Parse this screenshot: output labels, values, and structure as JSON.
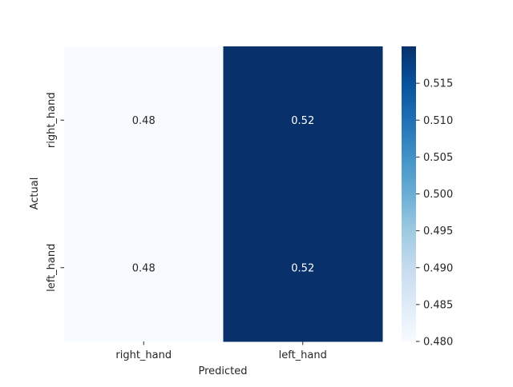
{
  "chart_data": {
    "type": "heatmap",
    "title": "",
    "xlabel": "Predicted",
    "ylabel": "Actual",
    "x_categories": [
      "right_hand",
      "left_hand"
    ],
    "y_categories": [
      "right_hand",
      "left_hand"
    ],
    "values": [
      [
        0.48,
        0.52
      ],
      [
        0.48,
        0.52
      ]
    ],
    "annotations": [
      [
        "0.48",
        "0.52"
      ],
      [
        "0.48",
        "0.52"
      ]
    ],
    "colorbar": {
      "min": 0.48,
      "max": 0.52,
      "ticks": [
        0.48,
        0.485,
        0.49,
        0.495,
        0.5,
        0.505,
        0.51,
        0.515
      ],
      "tick_labels": [
        "0.480",
        "0.485",
        "0.490",
        "0.495",
        "0.500",
        "0.505",
        "0.510",
        "0.515"
      ]
    },
    "colormap": "Blues",
    "colors": {
      "low": "#f7fbff",
      "high": "#08306b",
      "annotation_on_light": "#262626",
      "annotation_on_dark": "#ffffff"
    },
    "grid": false
  }
}
